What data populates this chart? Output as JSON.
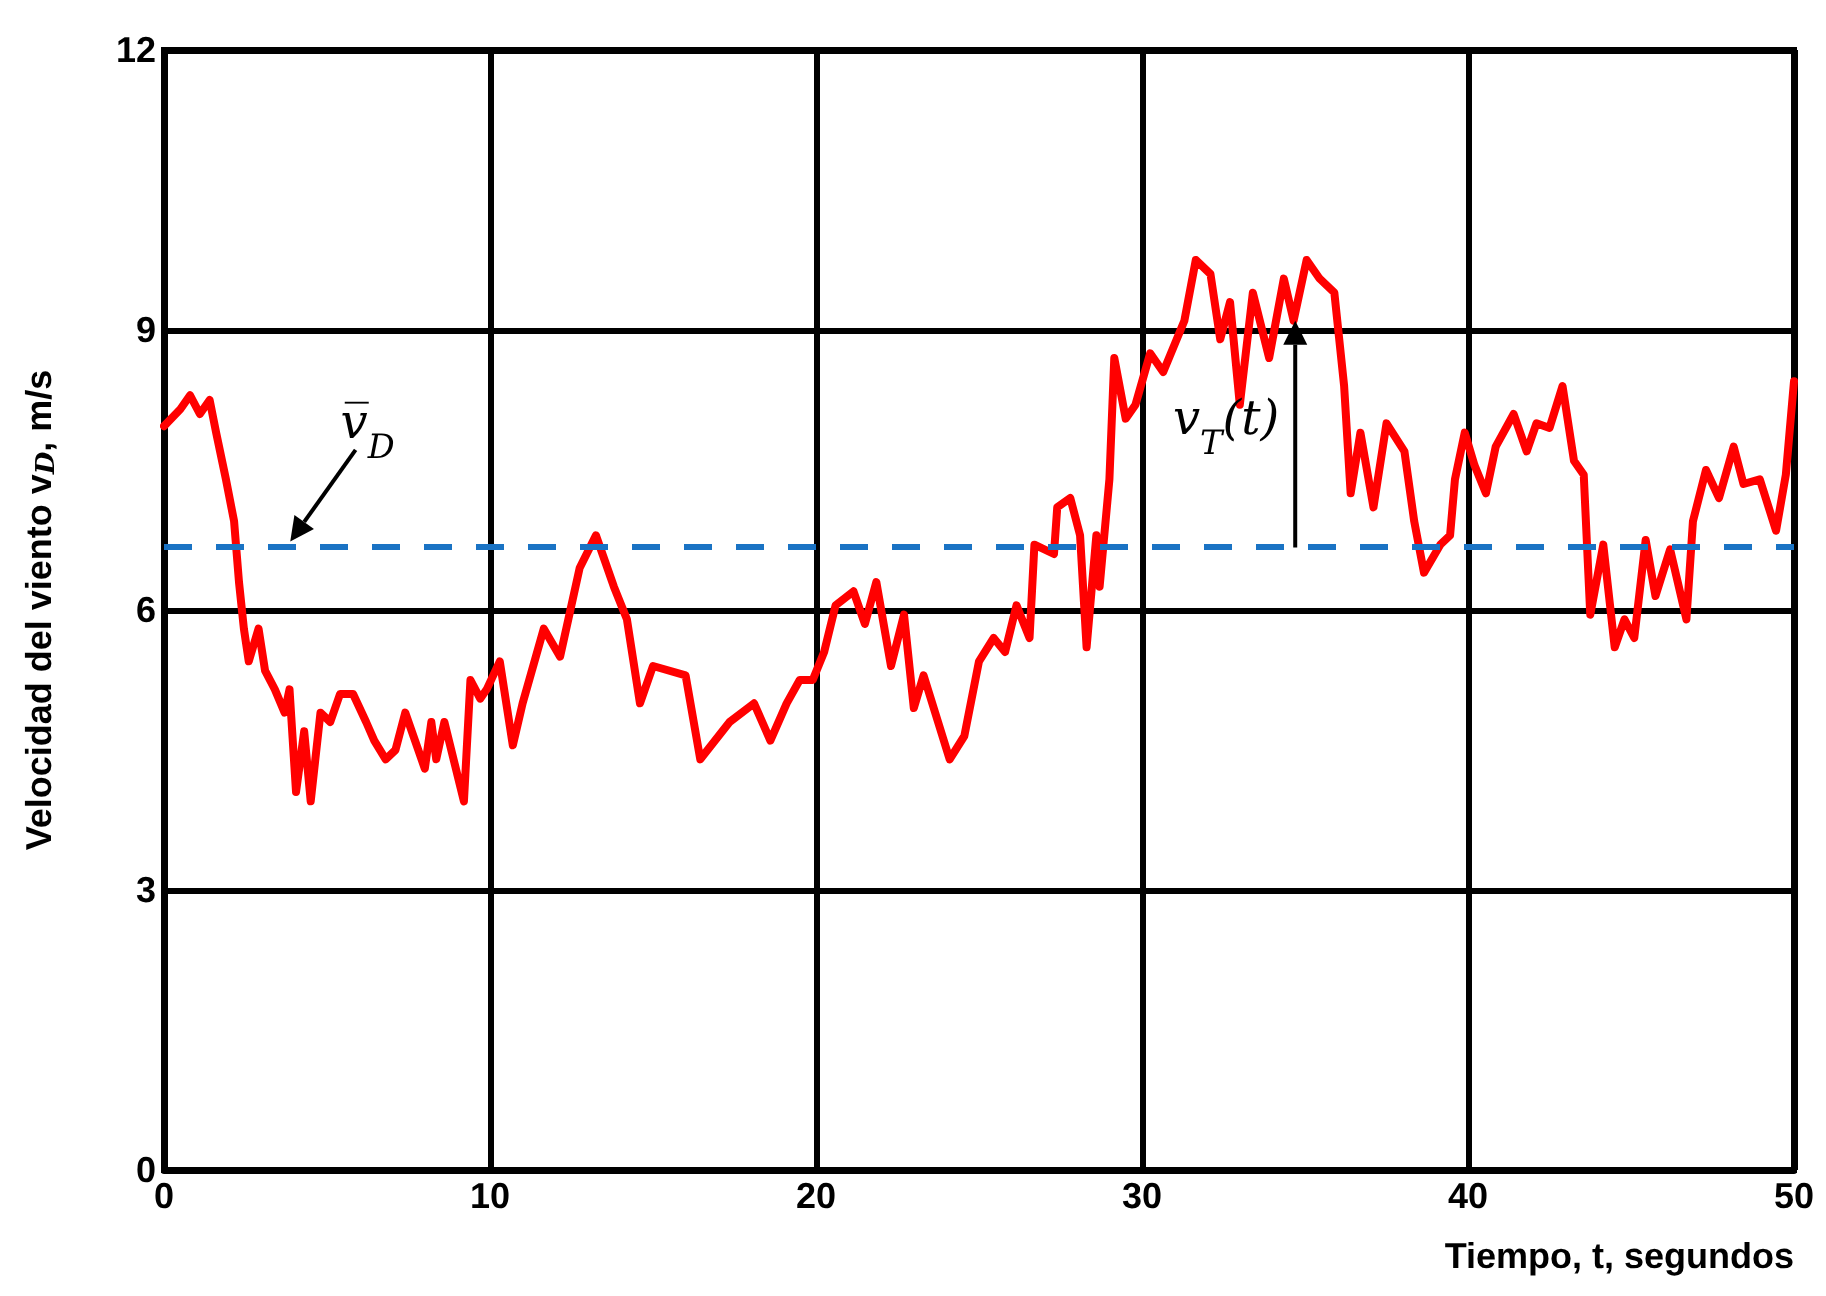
{
  "chart_data": {
    "type": "line",
    "xlabel": "Tiempo, t, segundos",
    "ylabel": "Velocidad del viento v$_{D}$, m/s",
    "xlim": [
      0,
      50
    ],
    "ylim": [
      0,
      12
    ],
    "xticks": [
      0,
      10,
      20,
      30,
      40,
      50
    ],
    "yticks": [
      0,
      3,
      6,
      9,
      12
    ],
    "grid": true,
    "marker": "none",
    "line_style": "solid",
    "series": [
      {
        "color": "#ff0000",
        "x": [
          0,
          0.5,
          0.8,
          1.1,
          1.4,
          1.6,
          1.9,
          2.15,
          2.3,
          2.45,
          2.6,
          2.9,
          3.1,
          3.4,
          3.7,
          3.85,
          4.05,
          4.3,
          4.5,
          4.8,
          5.1,
          5.4,
          5.8,
          6.2,
          6.45,
          6.8,
          7.1,
          7.4,
          7.7,
          8.0,
          8.2,
          8.35,
          8.6,
          9.2,
          9.4,
          9.7,
          9.9,
          10.3,
          10.7,
          11.0,
          11.65,
          12.15,
          12.75,
          13.25,
          13.8,
          14.2,
          14.6,
          15.0,
          16.0,
          16.45,
          17.35,
          18.1,
          18.6,
          19.1,
          19.5,
          19.9,
          20.25,
          20.6,
          21.15,
          21.5,
          21.85,
          22.3,
          22.7,
          23.0,
          23.3,
          24.1,
          24.55,
          25.0,
          25.45,
          25.8,
          26.15,
          26.55,
          26.7,
          27.3,
          27.4,
          27.8,
          28.1,
          28.3,
          28.6,
          28.7,
          29.0,
          29.15,
          29.5,
          29.8,
          30.25,
          30.65,
          31.3,
          31.65,
          32.1,
          32.4,
          32.7,
          33.0,
          33.4,
          33.9,
          34.35,
          34.65,
          35.05,
          35.45,
          35.9,
          36.2,
          36.4,
          36.7,
          37.1,
          37.5,
          38.05,
          38.35,
          38.65,
          39.15,
          39.45,
          39.6,
          39.9,
          40.2,
          40.55,
          40.85,
          41.4,
          41.8,
          42.1,
          42.5,
          42.9,
          43.25,
          43.55,
          43.75,
          44.15,
          44.5,
          44.8,
          45.1,
          45.45,
          45.75,
          46.2,
          46.7,
          46.9,
          47.3,
          47.7,
          48.15,
          48.45,
          48.95,
          49.45,
          49.75,
          50
        ],
        "values": [
          7.97,
          8.15,
          8.3,
          8.1,
          8.25,
          7.9,
          7.4,
          6.95,
          6.3,
          5.8,
          5.45,
          5.8,
          5.35,
          5.15,
          4.9,
          5.15,
          4.05,
          4.7,
          3.95,
          4.9,
          4.8,
          5.1,
          5.1,
          4.8,
          4.6,
          4.4,
          4.5,
          4.9,
          4.6,
          4.3,
          4.8,
          4.4,
          4.8,
          3.95,
          5.25,
          5.05,
          5.15,
          5.45,
          4.55,
          5.0,
          5.8,
          5.5,
          6.45,
          6.8,
          6.25,
          5.9,
          5.0,
          5.4,
          5.3,
          4.4,
          4.8,
          5.0,
          4.6,
          5.0,
          5.25,
          5.25,
          5.55,
          6.05,
          6.2,
          5.85,
          6.3,
          5.4,
          5.95,
          4.95,
          5.3,
          4.4,
          4.65,
          5.45,
          5.7,
          5.55,
          6.05,
          5.7,
          6.7,
          6.6,
          7.1,
          7.2,
          6.8,
          5.6,
          6.8,
          6.25,
          7.4,
          8.7,
          8.05,
          8.2,
          8.75,
          8.55,
          9.1,
          9.75,
          9.6,
          8.9,
          9.3,
          8.2,
          9.4,
          8.7,
          9.55,
          9.1,
          9.75,
          9.55,
          9.4,
          8.4,
          7.25,
          7.9,
          7.1,
          8.0,
          7.7,
          6.95,
          6.4,
          6.7,
          6.8,
          7.4,
          7.9,
          7.55,
          7.25,
          7.75,
          8.1,
          7.7,
          8.0,
          7.95,
          8.4,
          7.6,
          7.45,
          5.95,
          6.7,
          5.6,
          5.9,
          5.7,
          6.75,
          6.15,
          6.65,
          5.9,
          6.95,
          7.5,
          7.2,
          7.75,
          7.35,
          7.4,
          6.85,
          7.45,
          8.45
        ]
      }
    ],
    "ref_lines": [
      {
        "axis": "y",
        "value": 6.67,
        "label": "v̅$_{D}$",
        "color": "#1a73c4",
        "line_style": "dashed"
      }
    ],
    "annotations": [
      {
        "text": "v$_{T}$(t)",
        "x": 34.7,
        "y": 9.1
      }
    ]
  }
}
